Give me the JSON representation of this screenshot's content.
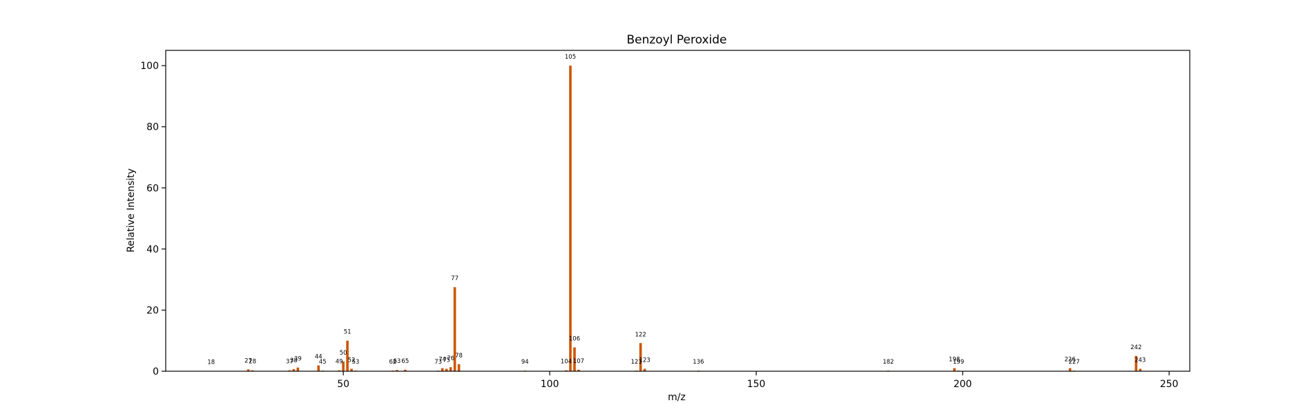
{
  "chart_data": {
    "type": "bar",
    "title": "Benzoyl Peroxide",
    "xlabel": "m/z",
    "ylabel": "Relative Intensity",
    "xlim": [
      7,
      255
    ],
    "ylim": [
      0,
      105
    ],
    "xticks": [
      50,
      100,
      150,
      200,
      250
    ],
    "yticks": [
      0,
      20,
      40,
      60,
      80,
      100
    ],
    "grid": false,
    "bar_color": "#cc5500",
    "peaks": [
      {
        "mz": 18,
        "intensity": 0.1
      },
      {
        "mz": 27,
        "intensity": 0.6
      },
      {
        "mz": 28,
        "intensity": 0.3
      },
      {
        "mz": 37,
        "intensity": 0.3
      },
      {
        "mz": 38,
        "intensity": 0.7
      },
      {
        "mz": 39,
        "intensity": 1.2
      },
      {
        "mz": 44,
        "intensity": 1.9
      },
      {
        "mz": 45,
        "intensity": 0.2
      },
      {
        "mz": 49,
        "intensity": 0.3
      },
      {
        "mz": 50,
        "intensity": 3.2
      },
      {
        "mz": 51,
        "intensity": 10.0
      },
      {
        "mz": 52,
        "intensity": 0.8
      },
      {
        "mz": 53,
        "intensity": 0.2
      },
      {
        "mz": 62,
        "intensity": 0.2
      },
      {
        "mz": 63,
        "intensity": 0.4
      },
      {
        "mz": 65,
        "intensity": 0.5
      },
      {
        "mz": 73,
        "intensity": 0.2
      },
      {
        "mz": 74,
        "intensity": 1.0
      },
      {
        "mz": 75,
        "intensity": 0.8
      },
      {
        "mz": 76,
        "intensity": 1.3
      },
      {
        "mz": 77,
        "intensity": 27.5
      },
      {
        "mz": 78,
        "intensity": 2.3
      },
      {
        "mz": 94,
        "intensity": 0.2
      },
      {
        "mz": 104,
        "intensity": 0.3
      },
      {
        "mz": 105,
        "intensity": 100.0
      },
      {
        "mz": 106,
        "intensity": 7.8
      },
      {
        "mz": 107,
        "intensity": 0.5
      },
      {
        "mz": 121,
        "intensity": 0.2
      },
      {
        "mz": 122,
        "intensity": 9.2
      },
      {
        "mz": 123,
        "intensity": 0.8
      },
      {
        "mz": 136,
        "intensity": 0.2
      },
      {
        "mz": 182,
        "intensity": 0.2
      },
      {
        "mz": 198,
        "intensity": 1.0
      },
      {
        "mz": 199,
        "intensity": 0.2
      },
      {
        "mz": 226,
        "intensity": 1.0
      },
      {
        "mz": 227,
        "intensity": 0.2
      },
      {
        "mz": 242,
        "intensity": 5.0
      },
      {
        "mz": 243,
        "intensity": 0.8
      }
    ]
  }
}
